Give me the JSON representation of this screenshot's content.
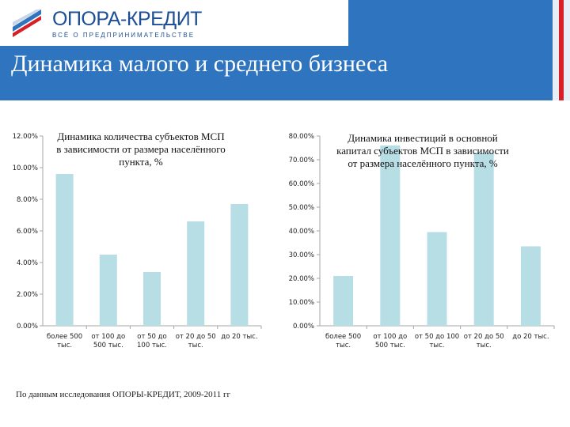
{
  "header": {
    "logo_name": "ОПОРА-КРЕДИТ",
    "logo_tagline": "ВСЁ О ПРЕДПРИНИМАТЕЛЬСТВЕ",
    "page_title": "Динамика малого и среднего бизнеса",
    "colors": {
      "background": "#2f74bf",
      "accent": "#d62027"
    }
  },
  "footnote": "По данным исследования ОПОРЫ-КРЕДИТ, 2009-2011 гг",
  "chart_data": [
    {
      "type": "bar",
      "title": [
        "Динамика количества субъектов МСП",
        "в зависимости от размера населённого",
        "пункта, %"
      ],
      "categories": [
        [
          "более 500",
          "тыс."
        ],
        [
          "от 100 до",
          "500 тыс."
        ],
        [
          "от 50 до",
          "100 тыс."
        ],
        [
          "от 20 до 50",
          "тыс."
        ],
        [
          "до 20 тыс."
        ]
      ],
      "values": [
        9.6,
        4.5,
        3.4,
        6.6,
        7.7
      ],
      "yticks": [
        "0.00%",
        "2.00%",
        "4.00%",
        "6.00%",
        "8.00%",
        "10.00%",
        "12.00%"
      ],
      "ylim": [
        0,
        12
      ],
      "xlabel": "",
      "ylabel": "",
      "grid": false,
      "bar_color": "#b7dde5"
    },
    {
      "type": "bar",
      "title": [
        "Динамика инвестиций в основной",
        "капитал субъектов МСП в зависимости",
        "от размера населённого пункта, %"
      ],
      "categories": [
        [
          "более 500",
          "тыс."
        ],
        [
          "от 100 до",
          "500 тыс."
        ],
        [
          "от 50 до 100",
          "тыс."
        ],
        [
          "от 20 до 50",
          "тыс."
        ],
        [
          "до 20 тыс."
        ]
      ],
      "values": [
        21,
        76,
        39.5,
        73,
        33.5
      ],
      "yticks": [
        "0.00%",
        "10.00%",
        "20.00%",
        "30.00%",
        "40.00%",
        "50.00%",
        "60.00%",
        "70.00%",
        "80.00%"
      ],
      "ylim": [
        0,
        80
      ],
      "xlabel": "",
      "ylabel": "",
      "grid": false,
      "bar_color": "#b7dde5"
    }
  ]
}
